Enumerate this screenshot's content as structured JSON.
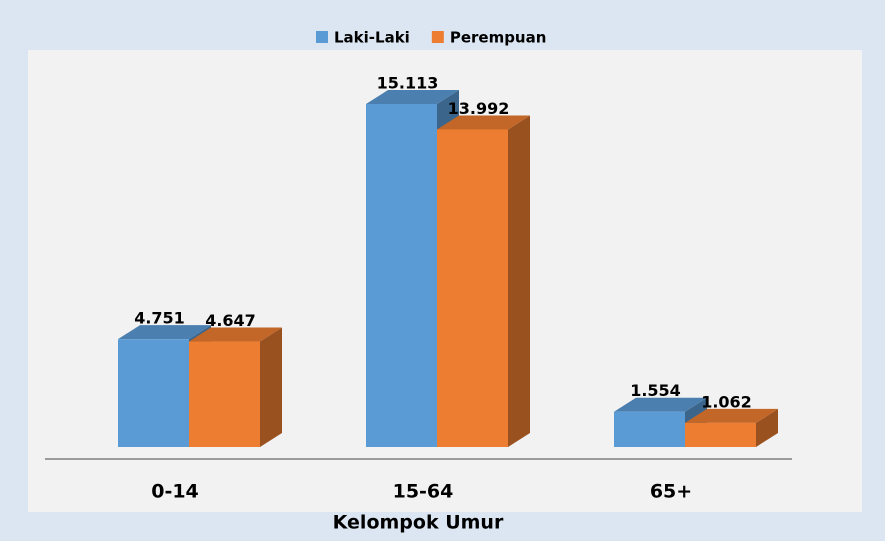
{
  "chart_data": {
    "type": "bar",
    "x_label": "Kelompok Umur",
    "categories": [
      "0-14",
      "15-64",
      "65+"
    ],
    "series": [
      {
        "name": "Laki-Laki",
        "color": "#5b9bd5",
        "values": [
          4751,
          15113,
          1554
        ],
        "value_labels": [
          "4.751",
          "15.113",
          "1.554"
        ]
      },
      {
        "name": "Perempuan",
        "color": "#ed7d31",
        "values": [
          4647,
          13992,
          1062
        ],
        "value_labels": [
          "4.647",
          "13.992",
          "1.062"
        ]
      }
    ],
    "legend": "top"
  }
}
